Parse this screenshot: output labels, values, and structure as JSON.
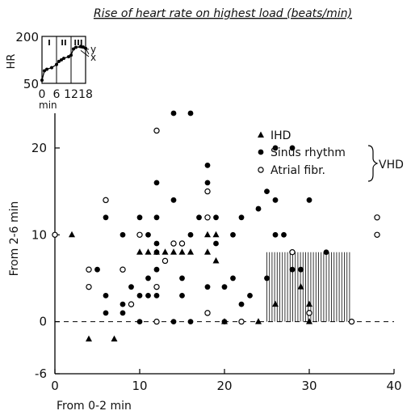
{
  "chart_data": [
    {
      "type": "scatter",
      "title": "Rise of heart rate on highest load (beats/min)",
      "xlabel": "From 0-2 min",
      "ylabel": "From 2-6 min",
      "xlim": [
        0,
        40
      ],
      "ylim": [
        -6,
        24
      ],
      "xticks": [
        "0",
        "10",
        "20",
        "30",
        "40"
      ],
      "yticks": [
        "-6",
        "0",
        "10",
        "20"
      ],
      "zero_line": "dashed at y = 0",
      "legend_position": "top-right",
      "legend_group_label": "VHD",
      "series": [
        {
          "name": "IHD",
          "marker": "filled-triangle",
          "points": [
            [
              2,
              10
            ],
            [
              4,
              -2
            ],
            [
              7,
              -2
            ],
            [
              10,
              8
            ],
            [
              11,
              8
            ],
            [
              12,
              8
            ],
            [
              13,
              8
            ],
            [
              14,
              8
            ],
            [
              15,
              8
            ],
            [
              16,
              8
            ],
            [
              18,
              10
            ],
            [
              18,
              8
            ],
            [
              19,
              10
            ],
            [
              19,
              7
            ],
            [
              20,
              0
            ],
            [
              24,
              0
            ],
            [
              26,
              2
            ],
            [
              29,
              4
            ],
            [
              30,
              2
            ],
            [
              30,
              0
            ]
          ]
        },
        {
          "name": "Sinus rhythm",
          "marker": "filled-circle",
          "points": [
            [
              5,
              6
            ],
            [
              6,
              3
            ],
            [
              6,
              1
            ],
            [
              6,
              12
            ],
            [
              8,
              10
            ],
            [
              8,
              6
            ],
            [
              8,
              2
            ],
            [
              8,
              1
            ],
            [
              9,
              4
            ],
            [
              10,
              12
            ],
            [
              10,
              3
            ],
            [
              10,
              0
            ],
            [
              11,
              10
            ],
            [
              11,
              5
            ],
            [
              11,
              3
            ],
            [
              12,
              16
            ],
            [
              12,
              12
            ],
            [
              12,
              9
            ],
            [
              12,
              8
            ],
            [
              12,
              6
            ],
            [
              12,
              3
            ],
            [
              14,
              24
            ],
            [
              14,
              14
            ],
            [
              14,
              0
            ],
            [
              15,
              5
            ],
            [
              15,
              3
            ],
            [
              16,
              24
            ],
            [
              16,
              10
            ],
            [
              16,
              0
            ],
            [
              17,
              12
            ],
            [
              18,
              16
            ],
            [
              18,
              18
            ],
            [
              18,
              4
            ],
            [
              19,
              12
            ],
            [
              19,
              9
            ],
            [
              20,
              4
            ],
            [
              20,
              0
            ],
            [
              21,
              5
            ],
            [
              21,
              10
            ],
            [
              22,
              2
            ],
            [
              22,
              12
            ],
            [
              23,
              3
            ],
            [
              24,
              13
            ],
            [
              25,
              5
            ],
            [
              25,
              15
            ],
            [
              26,
              20
            ],
            [
              26,
              10
            ],
            [
              26,
              14
            ],
            [
              27,
              10
            ],
            [
              28,
              20
            ],
            [
              28,
              6
            ],
            [
              29,
              6
            ],
            [
              30,
              14
            ],
            [
              32,
              8
            ]
          ]
        },
        {
          "name": "Atrial fibr.",
          "marker": "open-circle",
          "points": [
            [
              0,
              10
            ],
            [
              4,
              6
            ],
            [
              4,
              4
            ],
            [
              6,
              14
            ],
            [
              8,
              6
            ],
            [
              9,
              2
            ],
            [
              10,
              10
            ],
            [
              12,
              22
            ],
            [
              12,
              4
            ],
            [
              12,
              0
            ],
            [
              13,
              7
            ],
            [
              14,
              9
            ],
            [
              15,
              9
            ],
            [
              18,
              15
            ],
            [
              18,
              12
            ],
            [
              18,
              1
            ],
            [
              22,
              0
            ],
            [
              28,
              8
            ],
            [
              30,
              1
            ],
            [
              35,
              0
            ],
            [
              38,
              12
            ],
            [
              38,
              10
            ]
          ]
        }
      ],
      "shaded_region": {
        "x": [
          25,
          35
        ],
        "y": [
          0,
          8
        ],
        "pattern": "vertical hatching"
      }
    },
    {
      "type": "line",
      "ylabel": "HR",
      "xlabel": "min",
      "xlim": [
        0,
        18
      ],
      "ylim": [
        50,
        200
      ],
      "xticks": [
        "0",
        "6",
        "12",
        "18"
      ],
      "yticks": [
        "50",
        "200"
      ],
      "phase_labels": [
        "I",
        "II",
        "III"
      ],
      "phase_boundaries": [
        6,
        12
      ],
      "series_labels": [
        "y",
        "x"
      ],
      "series": [
        {
          "values": [
            [
              0,
              60
            ],
            [
              1,
              90
            ],
            [
              2,
              95
            ],
            [
              4,
              100
            ],
            [
              6,
              110
            ],
            [
              7,
              120
            ],
            [
              8,
              125
            ],
            [
              9,
              130
            ],
            [
              11,
              135
            ],
            [
              12,
              140
            ],
            [
              13,
              160
            ],
            [
              14,
              165
            ],
            [
              16,
              168
            ],
            [
              17,
              166
            ],
            [
              18,
              162
            ]
          ]
        }
      ]
    }
  ]
}
